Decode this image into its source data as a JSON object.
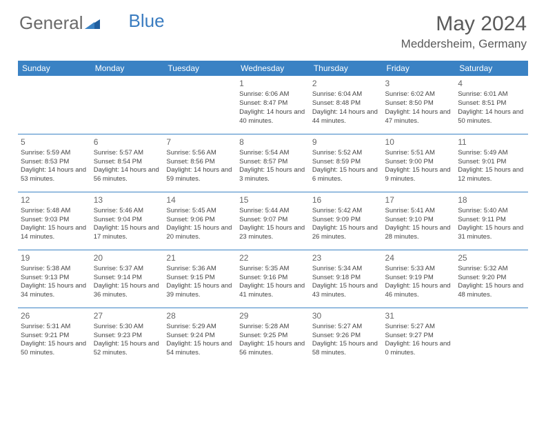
{
  "logo": {
    "general": "General",
    "blue": "Blue"
  },
  "title": "May 2024",
  "location": "Meddersheim, Germany",
  "colors": {
    "header_bg": "#3a82c4",
    "header_text": "#ffffff",
    "cell_border": "#3a82c4",
    "logo_blue": "#3a7cc0",
    "text": "#444444",
    "title_text": "#5a5a5a"
  },
  "weekdays": [
    "Sunday",
    "Monday",
    "Tuesday",
    "Wednesday",
    "Thursday",
    "Friday",
    "Saturday"
  ],
  "cells": [
    [
      {
        "day": "",
        "lines": []
      },
      {
        "day": "",
        "lines": []
      },
      {
        "day": "",
        "lines": []
      },
      {
        "day": "1",
        "lines": [
          "Sunrise: 6:06 AM",
          "Sunset: 8:47 PM",
          "Daylight: 14 hours and 40 minutes."
        ]
      },
      {
        "day": "2",
        "lines": [
          "Sunrise: 6:04 AM",
          "Sunset: 8:48 PM",
          "Daylight: 14 hours and 44 minutes."
        ]
      },
      {
        "day": "3",
        "lines": [
          "Sunrise: 6:02 AM",
          "Sunset: 8:50 PM",
          "Daylight: 14 hours and 47 minutes."
        ]
      },
      {
        "day": "4",
        "lines": [
          "Sunrise: 6:01 AM",
          "Sunset: 8:51 PM",
          "Daylight: 14 hours and 50 minutes."
        ]
      }
    ],
    [
      {
        "day": "5",
        "lines": [
          "Sunrise: 5:59 AM",
          "Sunset: 8:53 PM",
          "Daylight: 14 hours and 53 minutes."
        ]
      },
      {
        "day": "6",
        "lines": [
          "Sunrise: 5:57 AM",
          "Sunset: 8:54 PM",
          "Daylight: 14 hours and 56 minutes."
        ]
      },
      {
        "day": "7",
        "lines": [
          "Sunrise: 5:56 AM",
          "Sunset: 8:56 PM",
          "Daylight: 14 hours and 59 minutes."
        ]
      },
      {
        "day": "8",
        "lines": [
          "Sunrise: 5:54 AM",
          "Sunset: 8:57 PM",
          "Daylight: 15 hours and 3 minutes."
        ]
      },
      {
        "day": "9",
        "lines": [
          "Sunrise: 5:52 AM",
          "Sunset: 8:59 PM",
          "Daylight: 15 hours and 6 minutes."
        ]
      },
      {
        "day": "10",
        "lines": [
          "Sunrise: 5:51 AM",
          "Sunset: 9:00 PM",
          "Daylight: 15 hours and 9 minutes."
        ]
      },
      {
        "day": "11",
        "lines": [
          "Sunrise: 5:49 AM",
          "Sunset: 9:01 PM",
          "Daylight: 15 hours and 12 minutes."
        ]
      }
    ],
    [
      {
        "day": "12",
        "lines": [
          "Sunrise: 5:48 AM",
          "Sunset: 9:03 PM",
          "Daylight: 15 hours and 14 minutes."
        ]
      },
      {
        "day": "13",
        "lines": [
          "Sunrise: 5:46 AM",
          "Sunset: 9:04 PM",
          "Daylight: 15 hours and 17 minutes."
        ]
      },
      {
        "day": "14",
        "lines": [
          "Sunrise: 5:45 AM",
          "Sunset: 9:06 PM",
          "Daylight: 15 hours and 20 minutes."
        ]
      },
      {
        "day": "15",
        "lines": [
          "Sunrise: 5:44 AM",
          "Sunset: 9:07 PM",
          "Daylight: 15 hours and 23 minutes."
        ]
      },
      {
        "day": "16",
        "lines": [
          "Sunrise: 5:42 AM",
          "Sunset: 9:09 PM",
          "Daylight: 15 hours and 26 minutes."
        ]
      },
      {
        "day": "17",
        "lines": [
          "Sunrise: 5:41 AM",
          "Sunset: 9:10 PM",
          "Daylight: 15 hours and 28 minutes."
        ]
      },
      {
        "day": "18",
        "lines": [
          "Sunrise: 5:40 AM",
          "Sunset: 9:11 PM",
          "Daylight: 15 hours and 31 minutes."
        ]
      }
    ],
    [
      {
        "day": "19",
        "lines": [
          "Sunrise: 5:38 AM",
          "Sunset: 9:13 PM",
          "Daylight: 15 hours and 34 minutes."
        ]
      },
      {
        "day": "20",
        "lines": [
          "Sunrise: 5:37 AM",
          "Sunset: 9:14 PM",
          "Daylight: 15 hours and 36 minutes."
        ]
      },
      {
        "day": "21",
        "lines": [
          "Sunrise: 5:36 AM",
          "Sunset: 9:15 PM",
          "Daylight: 15 hours and 39 minutes."
        ]
      },
      {
        "day": "22",
        "lines": [
          "Sunrise: 5:35 AM",
          "Sunset: 9:16 PM",
          "Daylight: 15 hours and 41 minutes."
        ]
      },
      {
        "day": "23",
        "lines": [
          "Sunrise: 5:34 AM",
          "Sunset: 9:18 PM",
          "Daylight: 15 hours and 43 minutes."
        ]
      },
      {
        "day": "24",
        "lines": [
          "Sunrise: 5:33 AM",
          "Sunset: 9:19 PM",
          "Daylight: 15 hours and 46 minutes."
        ]
      },
      {
        "day": "25",
        "lines": [
          "Sunrise: 5:32 AM",
          "Sunset: 9:20 PM",
          "Daylight: 15 hours and 48 minutes."
        ]
      }
    ],
    [
      {
        "day": "26",
        "lines": [
          "Sunrise: 5:31 AM",
          "Sunset: 9:21 PM",
          "Daylight: 15 hours and 50 minutes."
        ]
      },
      {
        "day": "27",
        "lines": [
          "Sunrise: 5:30 AM",
          "Sunset: 9:23 PM",
          "Daylight: 15 hours and 52 minutes."
        ]
      },
      {
        "day": "28",
        "lines": [
          "Sunrise: 5:29 AM",
          "Sunset: 9:24 PM",
          "Daylight: 15 hours and 54 minutes."
        ]
      },
      {
        "day": "29",
        "lines": [
          "Sunrise: 5:28 AM",
          "Sunset: 9:25 PM",
          "Daylight: 15 hours and 56 minutes."
        ]
      },
      {
        "day": "30",
        "lines": [
          "Sunrise: 5:27 AM",
          "Sunset: 9:26 PM",
          "Daylight: 15 hours and 58 minutes."
        ]
      },
      {
        "day": "31",
        "lines": [
          "Sunrise: 5:27 AM",
          "Sunset: 9:27 PM",
          "Daylight: 16 hours and 0 minutes."
        ]
      },
      {
        "day": "",
        "lines": []
      }
    ]
  ]
}
